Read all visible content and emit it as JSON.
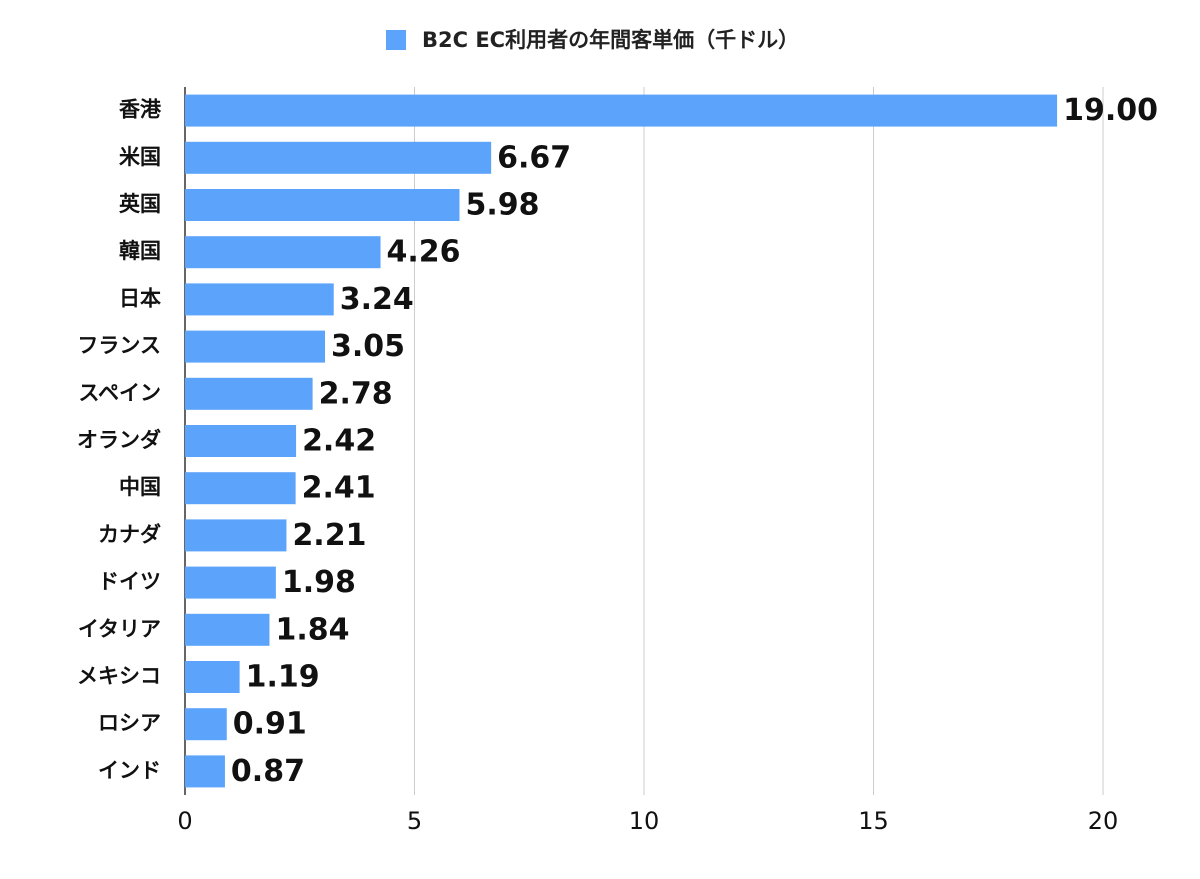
{
  "chart_data": {
    "type": "bar",
    "orientation": "horizontal",
    "categories": [
      "香港",
      "米国",
      "英国",
      "韓国",
      "日本",
      "フランス",
      "スペイン",
      "オランダ",
      "中国",
      "カナダ",
      "ドイツ",
      "イタリア",
      "メキシコ",
      "ロシア",
      "インド"
    ],
    "series": [
      {
        "name": "B2C EC利用者の年間客単価（千ドル）",
        "color": "#5ba3fb",
        "values": [
          19,
          6.67,
          5.98,
          4.26,
          3.24,
          3.05,
          2.78,
          2.42,
          2.41,
          2.21,
          1.98,
          1.84,
          1.19,
          0.91,
          0.87
        ],
        "value_labels": [
          "19.00",
          "6.67",
          "5.98",
          "4.26",
          "3.24",
          "3.05",
          "2.78",
          "2.42",
          "2.41",
          "2.21",
          "1.98",
          "1.84",
          "1.19",
          "0.91",
          "0.87"
        ]
      }
    ],
    "xlim": [
      0,
      20
    ],
    "xticks": [
      0,
      5,
      10,
      15,
      20
    ],
    "grid": true,
    "legend": "top"
  }
}
